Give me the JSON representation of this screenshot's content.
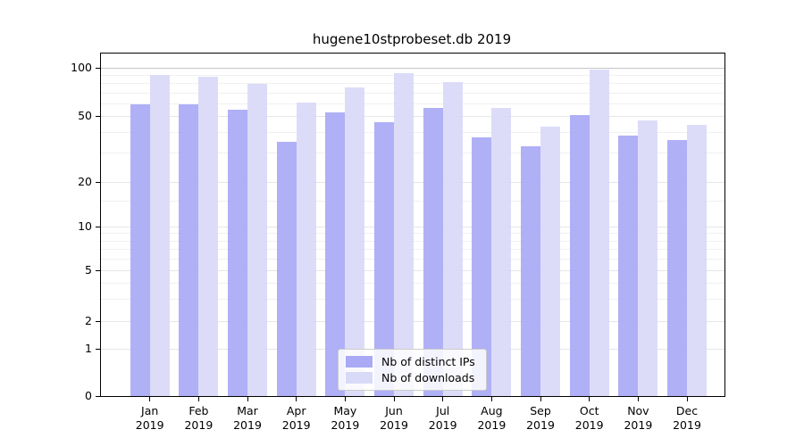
{
  "title": "hugene10stprobeset.db 2019",
  "chart_data": {
    "type": "bar",
    "title": "hugene10stprobeset.db 2019",
    "categories": [
      "Jan",
      "Feb",
      "Mar",
      "Apr",
      "May",
      "Jun",
      "Jul",
      "Aug",
      "Sep",
      "Oct",
      "Nov",
      "Dec"
    ],
    "year": "2019",
    "series": [
      {
        "name": "Nb of distinct IPs",
        "color": "#a9a9f6",
        "values": [
          59,
          59,
          55,
          35,
          53,
          46,
          56,
          37,
          33,
          51,
          38,
          36
        ]
      },
      {
        "name": "Nb of downloads",
        "color": "#d9d9f8",
        "values": [
          90,
          88,
          79,
          61,
          75,
          93,
          81,
          56,
          43,
          97,
          47,
          44
        ]
      }
    ],
    "yticks": [
      100,
      50,
      20,
      10,
      5,
      2,
      1,
      0
    ],
    "xlabel": "",
    "ylabel": "",
    "ylim": [
      0,
      110
    ],
    "axis_scale": "log-like, 0 at baseline",
    "grid": "horizontal major and minor gridlines",
    "legend_position": "bottom-center",
    "colors": {
      "grid_100": "#c6c6c6",
      "grid_major": "#e6e6e9",
      "grid_minor": "#f0f0f3",
      "spine": "#000000",
      "text": "#000000",
      "background": "#ffffff"
    }
  }
}
